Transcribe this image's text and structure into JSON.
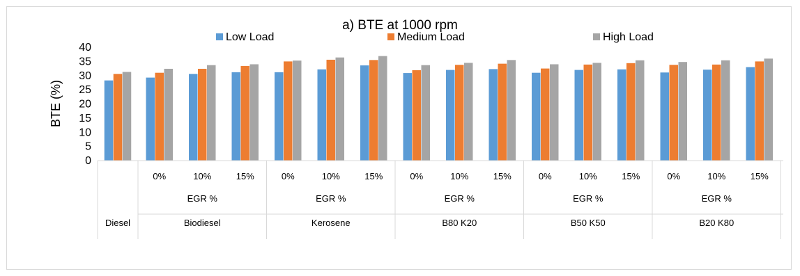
{
  "chart_data": {
    "type": "bar",
    "title": "a) BTE at 1000 rpm",
    "ylabel": "BTE (%)",
    "xlabel": "",
    "ylim": [
      0,
      40
    ],
    "yticks": [
      0,
      5,
      10,
      15,
      20,
      25,
      30,
      35,
      40
    ],
    "legend_position": "top",
    "grid": false,
    "groups": [
      {
        "fuel": "Diesel",
        "egr_label": "",
        "categories": [
          ""
        ]
      },
      {
        "fuel": "Biodiesel",
        "egr_label": "EGR %",
        "categories": [
          "0%",
          "10%",
          "15%"
        ]
      },
      {
        "fuel": "Kerosene",
        "egr_label": "EGR %",
        "categories": [
          "0%",
          "10%",
          "15%"
        ]
      },
      {
        "fuel": "B80 K20",
        "egr_label": "EGR %",
        "categories": [
          "0%",
          "10%",
          "15%"
        ]
      },
      {
        "fuel": "B50 K50",
        "egr_label": "EGR %",
        "categories": [
          "0%",
          "10%",
          "15%"
        ]
      },
      {
        "fuel": "B20 K80",
        "egr_label": "EGR %",
        "categories": [
          "0%",
          "10%",
          "15%"
        ]
      }
    ],
    "series": [
      {
        "name": "Low Load",
        "color": "#5b9bd5",
        "values": [
          28.3,
          29.3,
          30.6,
          31.2,
          31.2,
          32.2,
          33.6,
          30.9,
          32.0,
          32.3,
          31.0,
          32.0,
          32.2,
          31.1,
          32.1,
          33.0
        ]
      },
      {
        "name": "Medium Load",
        "color": "#ed7d31",
        "values": [
          30.6,
          31.0,
          32.4,
          33.4,
          35.0,
          35.6,
          35.5,
          31.9,
          33.8,
          34.2,
          32.5,
          33.9,
          34.4,
          33.8,
          33.9,
          35.0
        ]
      },
      {
        "name": "High Load",
        "color": "#a5a5a5",
        "values": [
          31.3,
          32.4,
          33.7,
          34.0,
          35.3,
          36.4,
          36.9,
          33.7,
          34.5,
          35.5,
          34.0,
          34.5,
          35.4,
          34.8,
          35.4,
          36.0
        ]
      }
    ]
  }
}
